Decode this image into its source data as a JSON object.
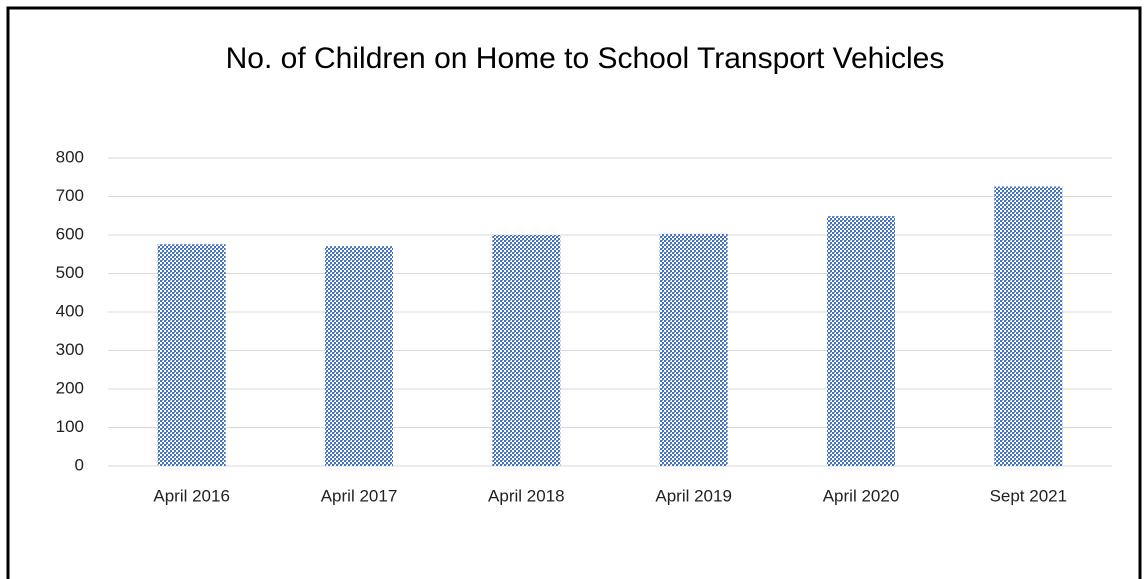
{
  "chart_data": {
    "type": "bar",
    "title": "No. of Children on Home to School Transport Vehicles",
    "categories": [
      "April 2016",
      "April 2017",
      "April 2018",
      "April 2019",
      "April 2020",
      "Sept 2021"
    ],
    "values": [
      576,
      571,
      600,
      603,
      649,
      726
    ],
    "color": "#4472c4",
    "ylim": [
      0,
      800
    ],
    "yticks": [
      0,
      100,
      200,
      300,
      400,
      500,
      600,
      700,
      800
    ],
    "grid": true
  }
}
